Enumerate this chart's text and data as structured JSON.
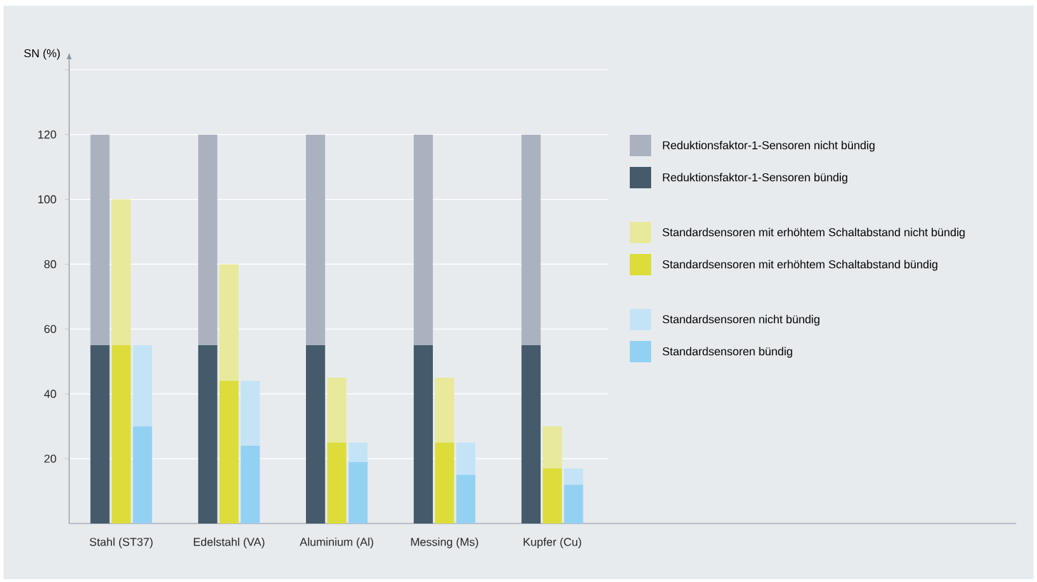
{
  "chart_data": {
    "type": "bar",
    "ylabel": "SN (%)",
    "categories": [
      "Stahl (ST37)",
      "Edelstahl (VA)",
      "Aluminium (Al)",
      "Messing (Ms)",
      "Kupfer (Cu)"
    ],
    "series": [
      {
        "name": "Reduktionsfaktor-1-Sensoren nicht bündig",
        "color": "#abb2bf",
        "base": [
          55,
          55,
          55,
          55,
          55
        ],
        "values": [
          65,
          65,
          65,
          65,
          65
        ]
      },
      {
        "name": "Reduktionsfaktor-1-Sensoren bündig",
        "color": "#455a6a",
        "values": [
          55,
          55,
          55,
          55,
          55
        ]
      },
      {
        "name": "Standardsensoren mit erhöhtem Schaltabstand nicht bündig",
        "color": "#e8e99b",
        "base": [
          55,
          44,
          25,
          25,
          17
        ],
        "values": [
          45,
          36,
          20,
          20,
          13
        ]
      },
      {
        "name": "Standardsensoren mit erhöhtem Schaltabstand bündig",
        "color": "#dcdd3a",
        "values": [
          55,
          44,
          25,
          25,
          17
        ]
      },
      {
        "name": "Standardsensoren nicht bündig",
        "color": "#c4e3f7",
        "base": [
          30,
          24,
          19,
          15,
          12
        ],
        "values": [
          25,
          20,
          6,
          10,
          5
        ]
      },
      {
        "name": "Standardsensoren bündig",
        "color": "#93d1f3",
        "values": [
          30,
          24,
          19,
          15,
          12
        ]
      }
    ],
    "ylim": [
      0,
      145
    ],
    "yticks": [
      20,
      40,
      60,
      80,
      100,
      120,
      {
        "value": 140,
        "label": null
      }
    ],
    "grid": "y",
    "legend": "right"
  }
}
